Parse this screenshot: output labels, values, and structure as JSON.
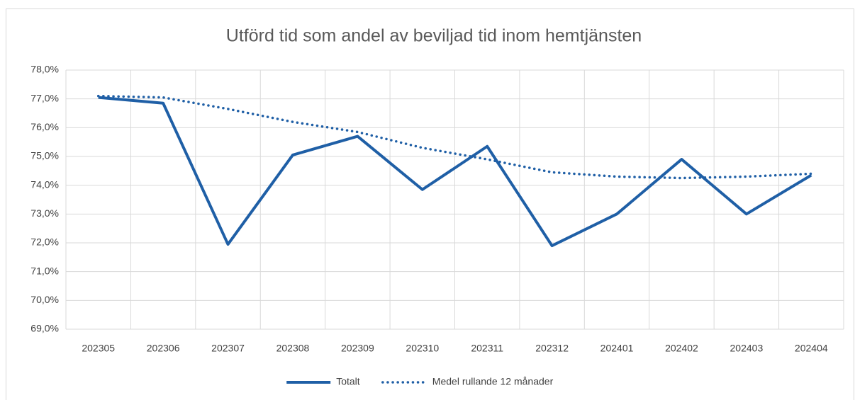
{
  "chart_data": {
    "type": "line",
    "title": "Utförd tid som andel av beviljad tid inom hemtjänsten",
    "categories": [
      "202305",
      "202306",
      "202307",
      "202308",
      "202309",
      "202310",
      "202311",
      "202312",
      "202401",
      "202402",
      "202403",
      "202404"
    ],
    "series": [
      {
        "name": "Totalt",
        "color": "#1f5fa6",
        "style": "solid",
        "values": [
          77.05,
          76.85,
          71.95,
          75.05,
          75.7,
          73.85,
          75.35,
          71.9,
          73.0,
          74.9,
          73.0,
          74.35
        ]
      },
      {
        "name": "Medel rullande 12 månader",
        "color": "#1f5fa6",
        "style": "dotted",
        "values": [
          77.1,
          77.05,
          76.65,
          76.2,
          75.85,
          75.3,
          74.9,
          74.45,
          74.3,
          74.25,
          74.3,
          74.4
        ]
      }
    ],
    "ylim": [
      69,
      78
    ],
    "yticks": [
      {
        "value": 69,
        "label": "69,0%"
      },
      {
        "value": 70,
        "label": "70,0%"
      },
      {
        "value": 71,
        "label": "71,0%"
      },
      {
        "value": 72,
        "label": "72,0%"
      },
      {
        "value": 73,
        "label": "73,0%"
      },
      {
        "value": 74,
        "label": "74,0%"
      },
      {
        "value": 75,
        "label": "75,0%"
      },
      {
        "value": 76,
        "label": "76,0%"
      },
      {
        "value": 77,
        "label": "77,0%"
      },
      {
        "value": 78,
        "label": "78,0%"
      }
    ],
    "grid": true,
    "legend": "bottom"
  }
}
